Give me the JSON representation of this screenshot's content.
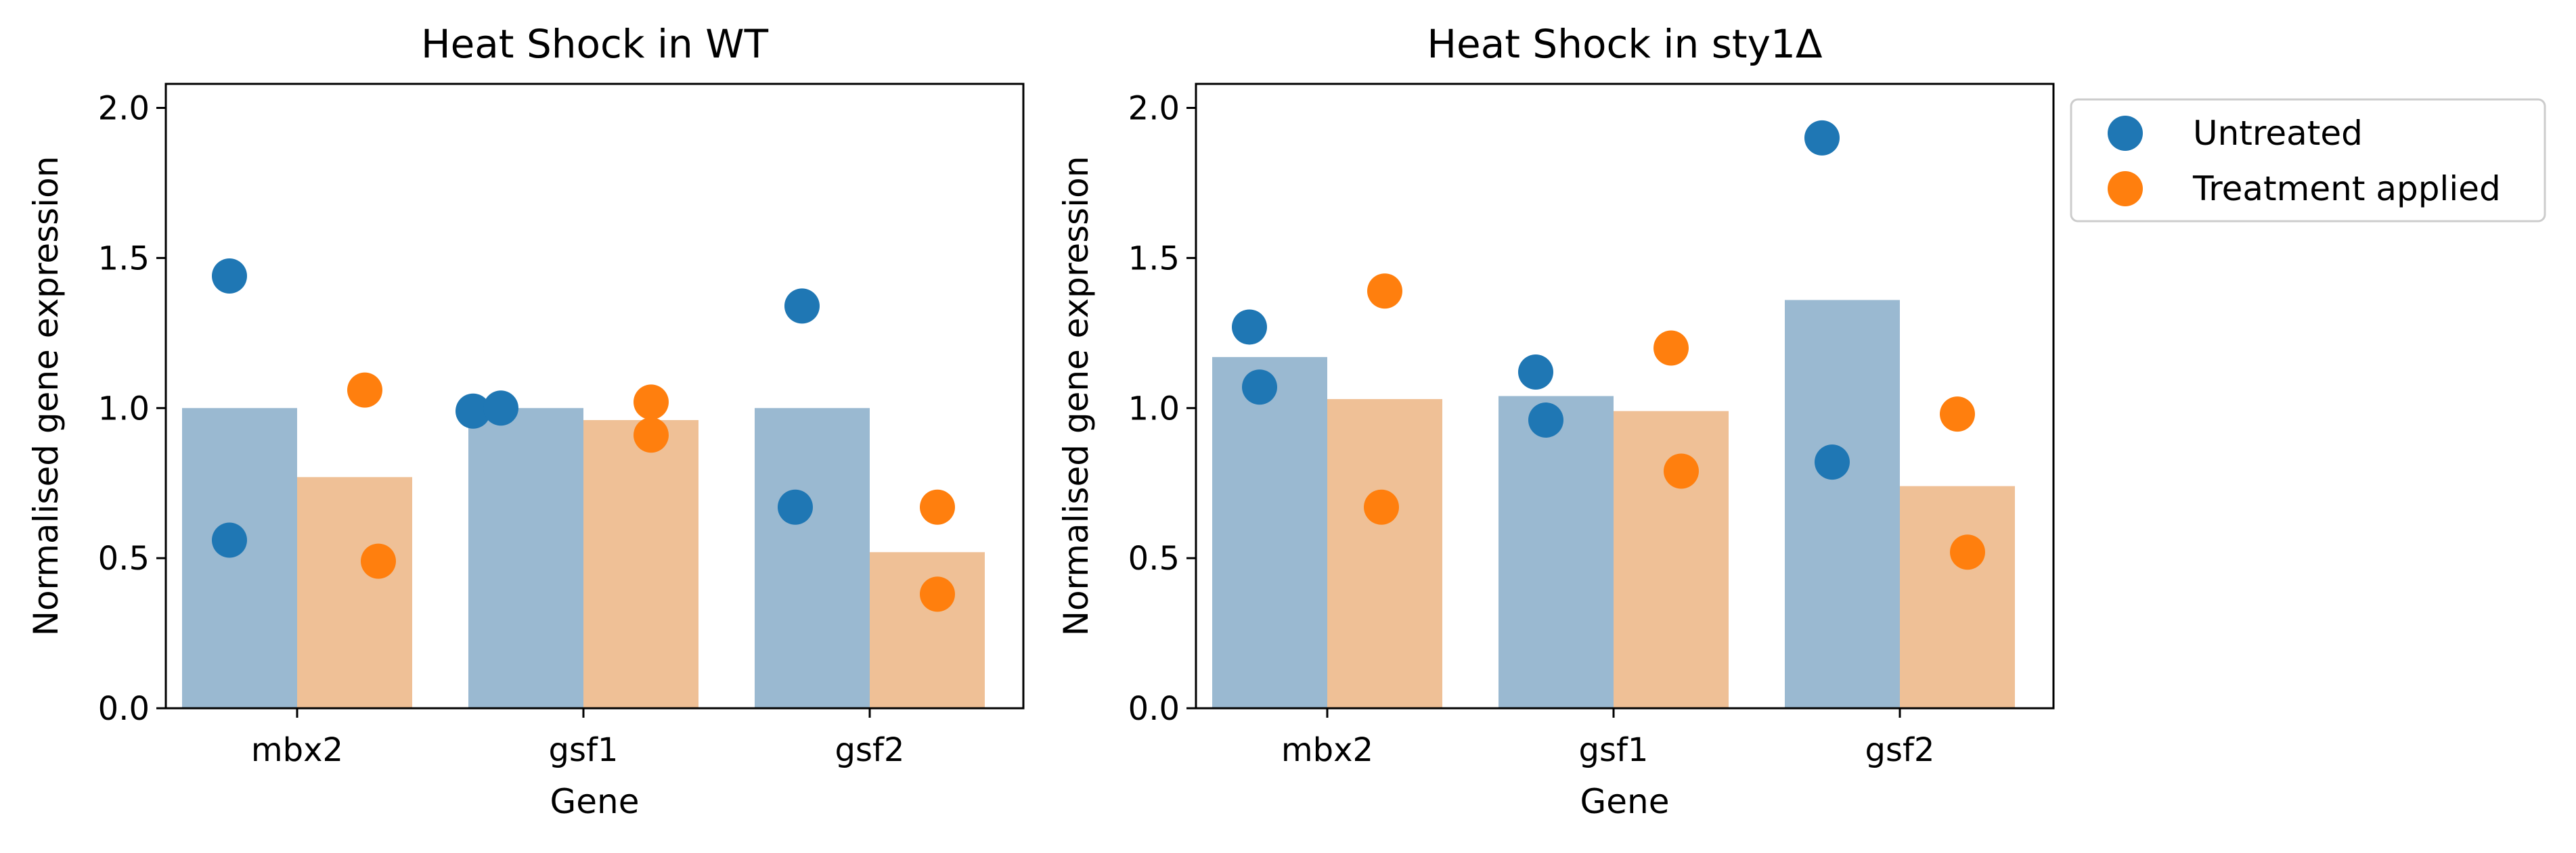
{
  "colors": {
    "untreated": "#1f77b4",
    "treatment": "#ff7f0e",
    "untreated_bar": "#9ab9d1",
    "treatment_bar": "#efc096"
  },
  "legend": {
    "items": [
      {
        "label": "Untreated",
        "color_key": "untreated"
      },
      {
        "label": "Treatment applied",
        "color_key": "treatment"
      }
    ]
  },
  "chart_data": [
    {
      "type": "bar",
      "title": "Heat Shock in WT",
      "xlabel": "Gene",
      "ylabel": "Normalised gene expression",
      "categories": [
        "mbx2",
        "gsf1",
        "gsf2"
      ],
      "ylim": [
        0,
        2.08
      ],
      "yticks": [
        "0.0",
        "0.5",
        "1.0",
        "1.5",
        "2.0"
      ],
      "series": [
        {
          "name": "Untreated",
          "values": [
            1.0,
            1.0,
            1.0
          ],
          "points": [
            [
              1.44,
              0.56
            ],
            [
              0.99,
              1.0
            ],
            [
              1.34,
              0.67
            ]
          ]
        },
        {
          "name": "Treatment applied",
          "values": [
            0.77,
            0.96,
            0.52
          ],
          "points": [
            [
              1.06,
              0.49
            ],
            [
              1.02,
              0.91
            ],
            [
              0.67,
              0.38
            ]
          ]
        }
      ]
    },
    {
      "type": "bar",
      "title": "Heat Shock in sty1Δ",
      "xlabel": "Gene",
      "ylabel": "Normalised gene expression",
      "categories": [
        "mbx2",
        "gsf1",
        "gsf2"
      ],
      "ylim": [
        0,
        2.08
      ],
      "yticks": [
        "0.0",
        "0.5",
        "1.0",
        "1.5",
        "2.0"
      ],
      "legend": "outside right",
      "series": [
        {
          "name": "Untreated",
          "values": [
            1.17,
            1.04,
            1.36
          ],
          "points": [
            [
              1.27,
              1.07
            ],
            [
              1.12,
              0.96
            ],
            [
              1.9,
              0.82
            ]
          ]
        },
        {
          "name": "Treatment applied",
          "values": [
            1.03,
            0.99,
            0.74
          ],
          "points": [
            [
              1.39,
              0.67
            ],
            [
              1.2,
              0.79
            ],
            [
              0.98,
              0.52
            ]
          ]
        }
      ]
    }
  ]
}
